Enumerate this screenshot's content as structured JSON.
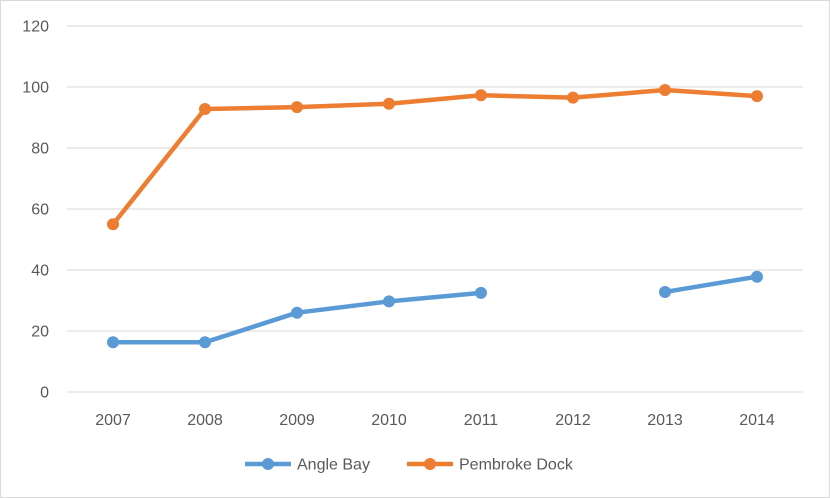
{
  "chart_data": {
    "type": "line",
    "title": "",
    "xlabel": "",
    "ylabel": "",
    "x": [
      "2007",
      "2008",
      "2009",
      "2010",
      "2011",
      "2012",
      "2013",
      "2014"
    ],
    "ylim": [
      0,
      120
    ],
    "yticks": [
      0,
      20,
      40,
      60,
      80,
      100,
      120
    ],
    "grid": true,
    "legend_position": "bottom",
    "series": [
      {
        "name": "Angle Bay",
        "color": "#5b9bd5",
        "values": [
          16.3,
          16.3,
          26.0,
          29.7,
          32.5,
          null,
          32.8,
          37.8
        ]
      },
      {
        "name": "Pembroke Dock",
        "color": "#ed7d31",
        "values": [
          55.0,
          92.8,
          93.4,
          94.5,
          97.3,
          96.5,
          99.0,
          97.0
        ]
      }
    ]
  }
}
